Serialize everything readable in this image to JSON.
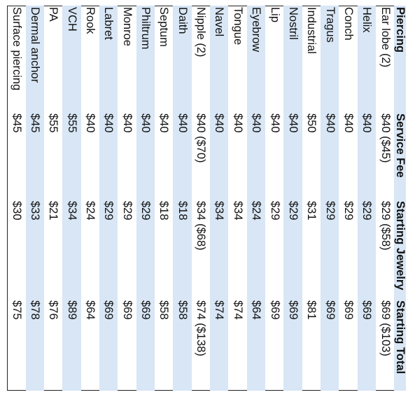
{
  "table": {
    "headers": [
      "Piercing",
      "Service Fee",
      "Starting Jewelry",
      "Starting Total"
    ],
    "rows": [
      [
        "Ear lobe (2)",
        "$40 ($45)",
        "$29 ($58)",
        "$69 ($103)"
      ],
      [
        "Helix",
        "$40",
        "$29",
        "$69"
      ],
      [
        "Conch",
        "$40",
        "$29",
        "$69"
      ],
      [
        "Tragus",
        "$40",
        "$29",
        "$69"
      ],
      [
        "Industrial",
        "$50",
        "$31",
        "$81"
      ],
      [
        "Nostril",
        "$40",
        "$29",
        "$69"
      ],
      [
        "Lip",
        "$40",
        "$29",
        "$69"
      ],
      [
        "Eyebrow",
        "$40",
        "$24",
        "$64"
      ],
      [
        "Tongue",
        "$40",
        "$34",
        "$74"
      ],
      [
        "Navel",
        "$40",
        "$34",
        "$74"
      ],
      [
        "Nipple (2)",
        "$40 ($70)",
        "$34 ($68)",
        "$74 ($138)"
      ],
      [
        "Daith",
        "$40",
        "$18",
        "$58"
      ],
      [
        "Septum",
        "$40",
        "$18",
        "$58"
      ],
      [
        "Philtrum",
        "$40",
        "$29",
        "$69"
      ],
      [
        "Monroe",
        "$40",
        "$29",
        "$69"
      ],
      [
        "Labret",
        "$40",
        "$29",
        "$69"
      ],
      [
        "Rook",
        "$40",
        "$24",
        "$64"
      ],
      [
        "VCH",
        "$55",
        "$34",
        "$89"
      ],
      [
        "PA",
        "$55",
        "$21",
        "$76"
      ],
      [
        "Dermal anchor",
        "$45",
        "$33",
        "$78"
      ],
      [
        "Surface piercing",
        "$45",
        "$30",
        "$75"
      ]
    ]
  },
  "colors": {
    "band": "#d8e6f5",
    "text": "#111111",
    "border": "#222222"
  }
}
